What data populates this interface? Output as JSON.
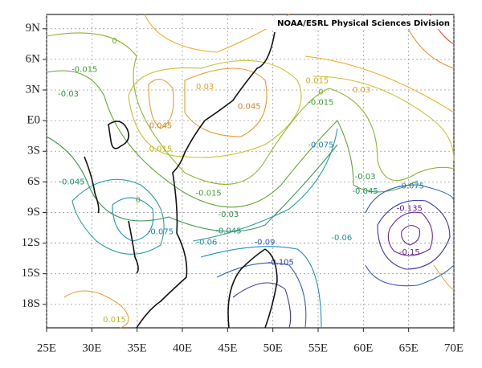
{
  "chart_data": {
    "type": "contour",
    "title": "NOAA/ESRL Physical Sciences Division",
    "xlim": [
      25,
      70
    ],
    "ylim": [
      -20.3,
      10.4
    ],
    "xticks": [
      {
        "value": 25,
        "label": "25E"
      },
      {
        "value": 30,
        "label": "30E"
      },
      {
        "value": 35,
        "label": "35E"
      },
      {
        "value": 40,
        "label": "40E"
      },
      {
        "value": 45,
        "label": "45E"
      },
      {
        "value": 50,
        "label": "50E"
      },
      {
        "value": 55,
        "label": "55E"
      },
      {
        "value": 60,
        "label": "60E"
      },
      {
        "value": 65,
        "label": "65E"
      },
      {
        "value": 70,
        "label": "70E"
      }
    ],
    "yticks": [
      {
        "value": 9,
        "label": "9N"
      },
      {
        "value": 6,
        "label": "6N"
      },
      {
        "value": 3,
        "label": "3N"
      },
      {
        "value": 0,
        "label": "E0"
      },
      {
        "value": -3,
        "label": "3S"
      },
      {
        "value": -6,
        "label": "6S"
      },
      {
        "value": -9,
        "label": "9S"
      },
      {
        "value": -12,
        "label": "12S"
      },
      {
        "value": -15,
        "label": "15S"
      },
      {
        "value": -18,
        "label": "18S"
      }
    ],
    "grid": true,
    "contour_labels": [
      {
        "lon": 32.5,
        "lat": 7.8,
        "value": 0
      },
      {
        "lon": 29.2,
        "lat": 5.0,
        "value": -0.015
      },
      {
        "lon": 27.4,
        "lat": 2.6,
        "value": -0.03
      },
      {
        "lon": 42.5,
        "lat": 3.3,
        "value": 0.03
      },
      {
        "lon": 47.4,
        "lat": 1.4,
        "value": 0.045
      },
      {
        "lon": 37.6,
        "lat": -0.5,
        "value": 0.045
      },
      {
        "lon": 37.6,
        "lat": -2.8,
        "value": 0.015
      },
      {
        "lon": 54.9,
        "lat": 3.9,
        "value": 0.015
      },
      {
        "lon": 55.3,
        "lat": 2.8,
        "value": 0
      },
      {
        "lon": 55.3,
        "lat": 1.8,
        "value": -0.015
      },
      {
        "lon": 59.8,
        "lat": 3.0,
        "value": 0.03
      },
      {
        "lon": 55.3,
        "lat": -2.4,
        "value": -0.075
      },
      {
        "lon": 27.8,
        "lat": -6.0,
        "value": -0.045
      },
      {
        "lon": 35.1,
        "lat": -7.8,
        "value": 0
      },
      {
        "lon": 42.9,
        "lat": -7.1,
        "value": -0.015
      },
      {
        "lon": 45.1,
        "lat": -9.2,
        "value": -0.03
      },
      {
        "lon": 45.1,
        "lat": -10.8,
        "value": -0.045
      },
      {
        "lon": 42.7,
        "lat": -11.9,
        "value": -0.06
      },
      {
        "lon": 37.6,
        "lat": -10.9,
        "value": -0.075
      },
      {
        "lon": 49.1,
        "lat": -11.9,
        "value": -0.09
      },
      {
        "lon": 50.9,
        "lat": -13.9,
        "value": -0.105
      },
      {
        "lon": 57.6,
        "lat": -11.5,
        "value": -0.06
      },
      {
        "lon": 60.2,
        "lat": -5.5,
        "value": -0.03
      },
      {
        "lon": 60.2,
        "lat": -6.9,
        "value": -0.045
      },
      {
        "lon": 65.3,
        "lat": -6.4,
        "value": -0.075
      },
      {
        "lon": 65.1,
        "lat": -8.6,
        "value": -0.135
      },
      {
        "lon": 65.1,
        "lat": -12.9,
        "value": -0.15
      },
      {
        "lon": 32.5,
        "lat": -19.5,
        "value": 0.015
      }
    ]
  }
}
